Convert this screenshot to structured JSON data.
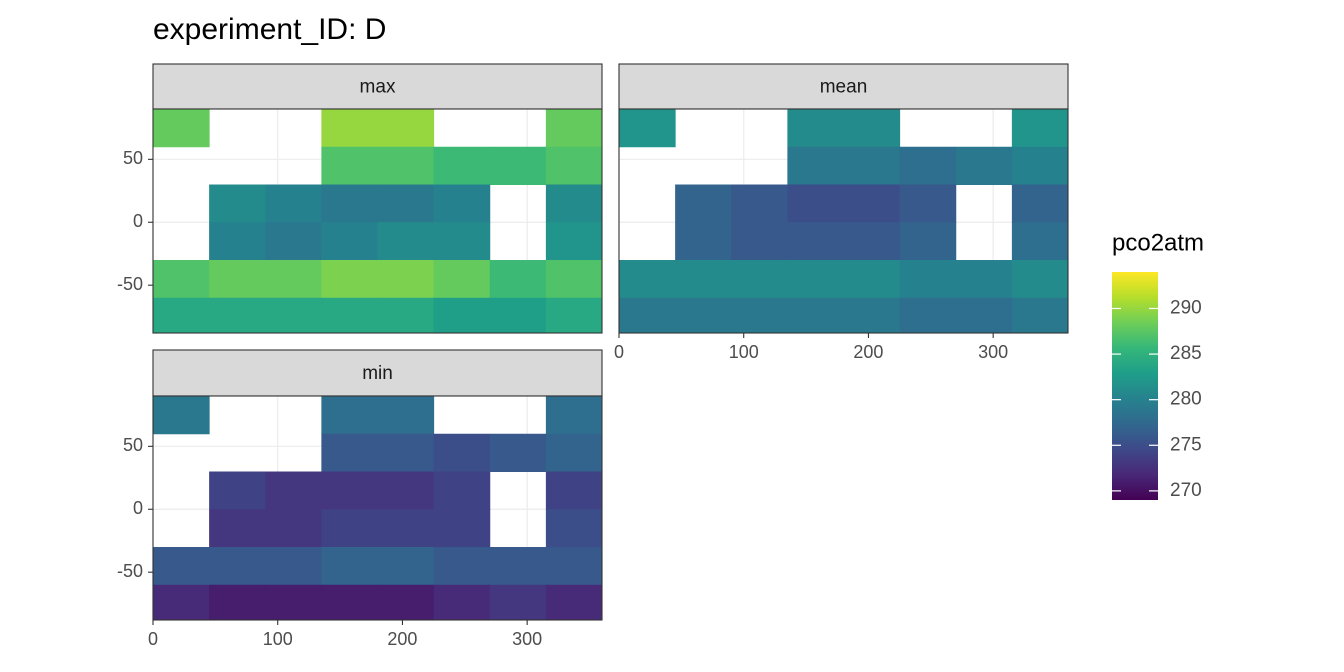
{
  "title": "experiment_ID: D",
  "legend": {
    "title": "pco2atm",
    "clim": [
      269,
      294
    ],
    "ticks": [
      270,
      275,
      280,
      285,
      290
    ],
    "colors": [
      "#440154",
      "#482878",
      "#3e4989",
      "#31688e",
      "#26828e",
      "#1f9e89",
      "#35b779",
      "#6ece58",
      "#b5de2b",
      "#fde725"
    ]
  },
  "chart_data": [
    {
      "type": "heatmap",
      "title": "max",
      "x": [
        22.5,
        67.5,
        112.5,
        157.5,
        202.5,
        247.5,
        292.5,
        337.5
      ],
      "y": [
        75,
        45,
        15,
        -15,
        -45,
        -75
      ],
      "values": [
        [
          288,
          null,
          null,
          290,
          290,
          null,
          null,
          288
        ],
        [
          null,
          null,
          null,
          287,
          287,
          286,
          286,
          287
        ],
        [
          null,
          281,
          280,
          279,
          279,
          280,
          null,
          281
        ],
        [
          null,
          280,
          279,
          280,
          281,
          281,
          null,
          282
        ],
        [
          287,
          288,
          288,
          289,
          289,
          288,
          286,
          287
        ],
        [
          284,
          284,
          284,
          284,
          284,
          283,
          283,
          284
        ]
      ],
      "xlim": [
        0,
        360
      ],
      "ylim": [
        -88,
        90
      ],
      "xticks": [
        0,
        100,
        200,
        300
      ],
      "yticks": [
        -50,
        0,
        50
      ],
      "grid": true
    },
    {
      "type": "heatmap",
      "title": "mean",
      "x": [
        22.5,
        67.5,
        112.5,
        157.5,
        202.5,
        247.5,
        292.5,
        337.5
      ],
      "y": [
        75,
        45,
        15,
        -15,
        -45,
        -75
      ],
      "values": [
        [
          282,
          null,
          null,
          281,
          281,
          null,
          null,
          282
        ],
        [
          null,
          null,
          null,
          279,
          279,
          278,
          279,
          280
        ],
        [
          null,
          277,
          276,
          275,
          275,
          276,
          null,
          277
        ],
        [
          null,
          277,
          276,
          276,
          276,
          277,
          null,
          278
        ],
        [
          281,
          281,
          281,
          281,
          281,
          280,
          280,
          281
        ],
        [
          279,
          279,
          279,
          279,
          279,
          278,
          278,
          279
        ]
      ],
      "xlim": [
        0,
        360
      ],
      "ylim": [
        -88,
        90
      ],
      "xticks": [
        0,
        100,
        200,
        300
      ],
      "yticks": [
        -50,
        0,
        50
      ],
      "grid": true
    },
    {
      "type": "heatmap",
      "title": "min",
      "x": [
        22.5,
        67.5,
        112.5,
        157.5,
        202.5,
        247.5,
        292.5,
        337.5
      ],
      "y": [
        75,
        45,
        15,
        -15,
        -45,
        -75
      ],
      "values": [
        [
          279,
          null,
          null,
          278,
          278,
          null,
          null,
          278
        ],
        [
          null,
          null,
          null,
          276,
          276,
          275,
          276,
          277
        ],
        [
          null,
          274,
          273,
          273,
          273,
          274,
          null,
          274
        ],
        [
          null,
          273,
          273,
          274,
          274,
          274,
          null,
          275
        ],
        [
          276,
          276,
          276,
          277,
          277,
          276,
          276,
          276
        ],
        [
          272,
          271,
          271,
          271,
          271,
          272,
          273,
          272
        ]
      ],
      "xlim": [
        0,
        360
      ],
      "ylim": [
        -88,
        90
      ],
      "xticks": [
        0,
        100,
        200,
        300
      ],
      "yticks": [
        -50,
        0,
        50
      ],
      "grid": true
    }
  ]
}
